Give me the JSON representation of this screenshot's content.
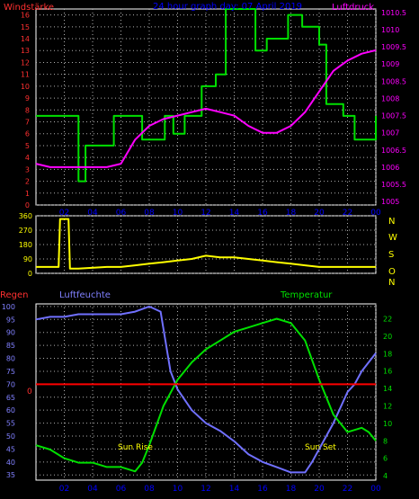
{
  "chart_data": [
    {
      "type": "line",
      "title": "24 hour graph day:  07 April 2019",
      "left_label": "Windstärke",
      "right_label": "Luftdruck",
      "x_ticks": [
        "02",
        "04",
        "06",
        "08",
        "10",
        "12",
        "14",
        "16",
        "18",
        "20",
        "22",
        "00"
      ],
      "left_ticks": [
        "0",
        "1",
        "2",
        "3",
        "4",
        "5",
        "6",
        "7",
        "8",
        "9",
        "10",
        "11",
        "12",
        "13",
        "14",
        "15",
        "16"
      ],
      "right_ticks": [
        "1005",
        "1005.5",
        "1006",
        "1006.5",
        "1007",
        "1007.5",
        "1008",
        "1008.5",
        "1009",
        "1009.5",
        "1010",
        "1010.5"
      ],
      "ylim_left": [
        0,
        16.5
      ],
      "ylim_right": [
        1004.9,
        1010.6
      ],
      "grid": true,
      "series": [
        {
          "axis": "left",
          "color": "#00e000",
          "step": true,
          "x": [
            0,
            2.2,
            3,
            3.5,
            5.5,
            7.5,
            8,
            9.1,
            9.7,
            10.5,
            11.7,
            12.7,
            13.4,
            15.5,
            16.3,
            17.8,
            18.8,
            20,
            20.5,
            21.7,
            22.5,
            24
          ],
          "y": [
            7.5,
            7.5,
            2,
            5,
            7.5,
            5.5,
            5.5,
            7.5,
            6,
            7.5,
            10,
            11,
            16.5,
            13,
            14,
            16,
            15,
            13.5,
            8.5,
            7.5,
            5.5,
            7.5
          ]
        },
        {
          "axis": "right",
          "color": "#ff00ff",
          "x": [
            0,
            1,
            2,
            3,
            4,
            5,
            6,
            7,
            8,
            9,
            10,
            11,
            12,
            13,
            14,
            15,
            16,
            17,
            18,
            19,
            20,
            21,
            22,
            23,
            24
          ],
          "y": [
            1006.1,
            1006.0,
            1006.0,
            1006.0,
            1006.0,
            1006.0,
            1006.1,
            1006.8,
            1007.2,
            1007.4,
            1007.5,
            1007.6,
            1007.7,
            1007.6,
            1007.5,
            1007.2,
            1007.0,
            1007.0,
            1007.2,
            1007.6,
            1008.2,
            1008.8,
            1009.1,
            1009.3,
            1009.4
          ]
        }
      ]
    },
    {
      "type": "line",
      "x_ticks": [
        "02",
        "04",
        "06",
        "08",
        "10",
        "12",
        "14",
        "16",
        "18",
        "20",
        "22",
        "00"
      ],
      "left_ticks": [
        "0",
        "90",
        "180",
        "270",
        "360"
      ],
      "right_ticks": [
        "N",
        "W",
        "S",
        "O",
        "N"
      ],
      "ylim": [
        0,
        360
      ],
      "grid": true,
      "series": [
        {
          "color": "#ffff00",
          "x": [
            0,
            1.6,
            1.7,
            2.3,
            2.4,
            3,
            5,
            6,
            7,
            8,
            9,
            10,
            11,
            12,
            13,
            14,
            15,
            16,
            17,
            18,
            19,
            20,
            21,
            22,
            23,
            24
          ],
          "y": [
            40,
            40,
            340,
            340,
            30,
            30,
            40,
            40,
            50,
            60,
            70,
            80,
            90,
            110,
            100,
            100,
            90,
            80,
            70,
            60,
            50,
            40,
            40,
            40,
            40,
            40
          ]
        }
      ]
    },
    {
      "type": "line",
      "left_label": "Regen",
      "mid_label": "Luftfeuchte",
      "right_label": "Temperatur",
      "x_ticks": [
        "02",
        "04",
        "06",
        "08",
        "10",
        "12",
        "14",
        "16",
        "18",
        "20",
        "22",
        "00"
      ],
      "left_ticks": [
        "35",
        "40",
        "45",
        "50",
        "55",
        "60",
        "65",
        "70",
        "75",
        "80",
        "85",
        "90",
        "95",
        "100"
      ],
      "right_ticks": [
        "4",
        "6",
        "8",
        "10",
        "12",
        "14",
        "16",
        "18",
        "20",
        "22"
      ],
      "rain_label": "0",
      "ylim_left": [
        33,
        101
      ],
      "ylim_right": [
        3.5,
        23.7
      ],
      "annotations": [
        "Sun Rise",
        "Sun Set"
      ],
      "grid": true,
      "series": [
        {
          "axis": "left",
          "color": "#7070ff",
          "x": [
            0,
            1,
            2,
            3,
            4,
            5,
            6,
            7,
            8,
            8.8,
            9.5,
            10,
            11,
            12,
            13,
            14,
            15,
            16,
            17,
            18,
            19,
            19.5,
            20,
            21,
            22,
            22.5,
            23,
            24
          ],
          "y": [
            95,
            96,
            96,
            97,
            97,
            97,
            97,
            98,
            100,
            98,
            75,
            68,
            60,
            55,
            52,
            48,
            43,
            40,
            38,
            36,
            36,
            40,
            45,
            55,
            67,
            70,
            75,
            82
          ]
        },
        {
          "axis": "right",
          "color": "#00e000",
          "x": [
            0,
            1,
            2,
            3,
            4,
            5,
            6,
            7,
            7.5,
            8,
            9,
            10,
            11,
            12,
            13,
            14,
            15,
            16,
            17,
            18,
            19,
            20,
            20.5,
            21,
            22,
            23,
            23.5,
            24
          ],
          "y": [
            7.5,
            7,
            6,
            5.5,
            5.5,
            5,
            5,
            4.5,
            5.5,
            7.5,
            12,
            15,
            17,
            18.5,
            19.5,
            20.5,
            21,
            21.5,
            22,
            21.5,
            19.5,
            15,
            13,
            11,
            9,
            9.5,
            9,
            8
          ]
        },
        {
          "axis": "left",
          "color": "#ff0000",
          "x": [
            0,
            24
          ],
          "y": [
            70,
            70
          ]
        }
      ]
    }
  ]
}
